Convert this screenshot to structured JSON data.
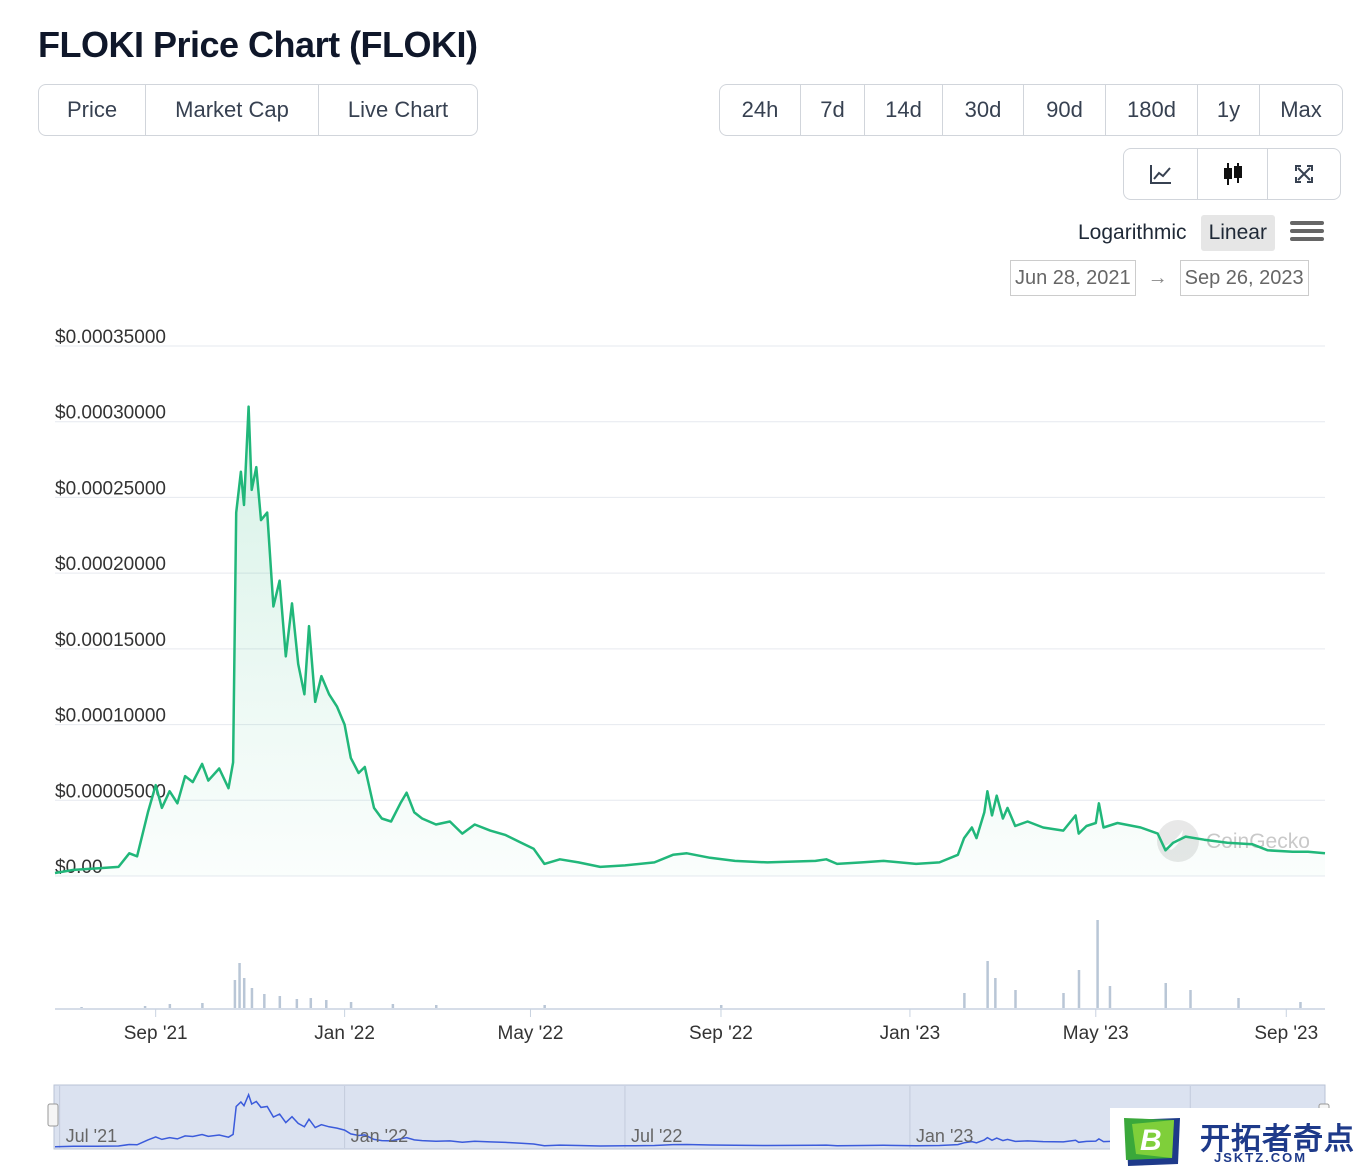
{
  "title": "FLOKI Price Chart (FLOKI)",
  "tabs": [
    {
      "label": "Price",
      "active": true
    },
    {
      "label": "Market Cap",
      "active": false
    },
    {
      "label": "Live Chart",
      "active": false
    }
  ],
  "ranges": [
    {
      "label": "24h",
      "active": false
    },
    {
      "label": "7d",
      "active": false
    },
    {
      "label": "14d",
      "active": false
    },
    {
      "label": "30d",
      "active": false
    },
    {
      "label": "90d",
      "active": false
    },
    {
      "label": "180d",
      "active": false
    },
    {
      "label": "1y",
      "active": false
    },
    {
      "label": "Max",
      "active": true
    }
  ],
  "chart_modes": [
    {
      "icon": "line-chart-icon",
      "active": true
    },
    {
      "icon": "candlestick-icon",
      "active": false
    },
    {
      "icon": "fullscreen-icon",
      "active": false
    }
  ],
  "scale": {
    "logarithmic": "Logarithmic",
    "linear": "Linear",
    "active": "Linear"
  },
  "date_range": {
    "from": "Jun 28, 2021",
    "to": "Sep 26, 2023",
    "arrow": "→"
  },
  "watermark": "CoinGecko",
  "navigator": {
    "labels": [
      "Jul '21",
      "Jan '22",
      "Jul '22",
      "Jan '23"
    ]
  },
  "logo": {
    "text_cn": "开拓者奇点",
    "text_en": "JSKTZ.COM",
    "mark": "B"
  },
  "colors": {
    "line": "#21b77a",
    "volume": "#b9c6d6",
    "navigator_fill": "#d8dfee",
    "navigator_line": "#3b5bdb"
  },
  "chart_data": {
    "type": "area",
    "title": "",
    "xlabel": "",
    "ylabel": "",
    "x_ticks": [
      "Sep '21",
      "Jan '22",
      "May '22",
      "Sep '22",
      "Jan '23",
      "May '23",
      "Sep '23"
    ],
    "x_tick_dates": [
      "2021-09-01",
      "2022-01-01",
      "2022-05-01",
      "2022-09-01",
      "2023-01-01",
      "2023-05-01",
      "2023-09-01"
    ],
    "y_ticks": [
      "$0.00",
      "$0.00005000",
      "$0.00010000",
      "$0.00015000",
      "$0.00020000",
      "$0.00025000",
      "$0.00030000",
      "$0.00035000"
    ],
    "y_tick_values": [
      0,
      5e-05,
      0.0001,
      0.00015,
      0.0002,
      0.00025,
      0.0003,
      0.00035
    ],
    "ylim": [
      0,
      0.00035
    ],
    "xlim": [
      "2021-06-28",
      "2023-09-26"
    ],
    "grid": true,
    "legend": "none",
    "series": [
      {
        "points": [
          [
            "2021-06-28",
            2e-06
          ],
          [
            "2021-07-10",
            4e-06
          ],
          [
            "2021-07-25",
            5e-06
          ],
          [
            "2021-08-08",
            6e-06
          ],
          [
            "2021-08-15",
            1.5e-05
          ],
          [
            "2021-08-20",
            1.3e-05
          ],
          [
            "2021-08-27",
            4.2e-05
          ],
          [
            "2021-09-01",
            6e-05
          ],
          [
            "2021-09-05",
            4.5e-05
          ],
          [
            "2021-09-10",
            5.6e-05
          ],
          [
            "2021-09-15",
            4.8e-05
          ],
          [
            "2021-09-20",
            6.6e-05
          ],
          [
            "2021-09-25",
            6.2e-05
          ],
          [
            "2021-10-01",
            7.4e-05
          ],
          [
            "2021-10-05",
            6.3e-05
          ],
          [
            "2021-10-12",
            7.1e-05
          ],
          [
            "2021-10-18",
            5.8e-05
          ],
          [
            "2021-10-21",
            7.5e-05
          ],
          [
            "2021-10-23",
            0.00024
          ],
          [
            "2021-10-26",
            0.000267
          ],
          [
            "2021-10-28",
            0.000245
          ],
          [
            "2021-10-31",
            0.00031
          ],
          [
            "2021-11-02",
            0.000255
          ],
          [
            "2021-11-05",
            0.00027
          ],
          [
            "2021-11-08",
            0.000235
          ],
          [
            "2021-11-12",
            0.00024
          ],
          [
            "2021-11-16",
            0.000178
          ],
          [
            "2021-11-20",
            0.000195
          ],
          [
            "2021-11-24",
            0.000145
          ],
          [
            "2021-11-28",
            0.00018
          ],
          [
            "2021-12-02",
            0.00014
          ],
          [
            "2021-12-06",
            0.00012
          ],
          [
            "2021-12-09",
            0.000165
          ],
          [
            "2021-12-13",
            0.000115
          ],
          [
            "2021-12-17",
            0.000132
          ],
          [
            "2021-12-22",
            0.00012
          ],
          [
            "2021-12-27",
            0.000112
          ],
          [
            "2022-01-01",
            0.0001
          ],
          [
            "2022-01-05",
            7.8e-05
          ],
          [
            "2022-01-10",
            6.8e-05
          ],
          [
            "2022-01-14",
            7.2e-05
          ],
          [
            "2022-01-20",
            4.5e-05
          ],
          [
            "2022-01-25",
            3.8e-05
          ],
          [
            "2022-01-31",
            3.6e-05
          ],
          [
            "2022-02-06",
            4.8e-05
          ],
          [
            "2022-02-10",
            5.5e-05
          ],
          [
            "2022-02-15",
            4.2e-05
          ],
          [
            "2022-02-20",
            3.8e-05
          ],
          [
            "2022-03-01",
            3.4e-05
          ],
          [
            "2022-03-10",
            3.6e-05
          ],
          [
            "2022-03-18",
            2.8e-05
          ],
          [
            "2022-03-26",
            3.4e-05
          ],
          [
            "2022-04-05",
            3e-05
          ],
          [
            "2022-04-15",
            2.7e-05
          ],
          [
            "2022-04-25",
            2.2e-05
          ],
          [
            "2022-05-03",
            1.8e-05
          ],
          [
            "2022-05-10",
            8e-06
          ],
          [
            "2022-05-20",
            1.1e-05
          ],
          [
            "2022-06-01",
            9e-06
          ],
          [
            "2022-06-15",
            6e-06
          ],
          [
            "2022-07-01",
            7e-06
          ],
          [
            "2022-07-20",
            9e-06
          ],
          [
            "2022-08-01",
            1.4e-05
          ],
          [
            "2022-08-10",
            1.5e-05
          ],
          [
            "2022-08-25",
            1.2e-05
          ],
          [
            "2022-09-10",
            1e-05
          ],
          [
            "2022-10-01",
            9e-06
          ],
          [
            "2022-11-01",
            1e-05
          ],
          [
            "2022-11-08",
            1.1e-05
          ],
          [
            "2022-11-15",
            8e-06
          ],
          [
            "2022-12-01",
            9e-06
          ],
          [
            "2022-12-15",
            1e-05
          ],
          [
            "2023-01-05",
            8e-06
          ],
          [
            "2023-01-20",
            9e-06
          ],
          [
            "2023-02-01",
            1.4e-05
          ],
          [
            "2023-02-05",
            2.5e-05
          ],
          [
            "2023-02-10",
            3.2e-05
          ],
          [
            "2023-02-13",
            2.5e-05
          ],
          [
            "2023-02-18",
            4.2e-05
          ],
          [
            "2023-02-20",
            5.6e-05
          ],
          [
            "2023-02-23",
            4e-05
          ],
          [
            "2023-02-26",
            5.3e-05
          ],
          [
            "2023-03-02",
            3.8e-05
          ],
          [
            "2023-03-05",
            4.5e-05
          ],
          [
            "2023-03-10",
            3.3e-05
          ],
          [
            "2023-03-18",
            3.6e-05
          ],
          [
            "2023-03-28",
            3.2e-05
          ],
          [
            "2023-04-10",
            3e-05
          ],
          [
            "2023-04-18",
            4e-05
          ],
          [
            "2023-04-20",
            2.8e-05
          ],
          [
            "2023-04-25",
            3.3e-05
          ],
          [
            "2023-05-01",
            3.5e-05
          ],
          [
            "2023-05-03",
            4.8e-05
          ],
          [
            "2023-05-06",
            3.2e-05
          ],
          [
            "2023-05-15",
            3.5e-05
          ],
          [
            "2023-05-30",
            3.2e-05
          ],
          [
            "2023-06-10",
            2.8e-05
          ],
          [
            "2023-06-15",
            1.7e-05
          ],
          [
            "2023-06-20",
            2.2e-05
          ],
          [
            "2023-06-28",
            2.6e-05
          ],
          [
            "2023-07-10",
            2.4e-05
          ],
          [
            "2023-07-25",
            2.2e-05
          ],
          [
            "2023-08-10",
            2.1e-05
          ],
          [
            "2023-08-20",
            1.7e-05
          ],
          [
            "2023-09-05",
            1.6e-05
          ],
          [
            "2023-09-15",
            1.6e-05
          ],
          [
            "2023-09-26",
            1.5e-05
          ]
        ]
      }
    ],
    "volume_series": [
      [
        "2021-07-15",
        1
      ],
      [
        "2021-08-25",
        2
      ],
      [
        "2021-09-10",
        4
      ],
      [
        "2021-10-01",
        5
      ],
      [
        "2021-10-22",
        28
      ],
      [
        "2021-10-25",
        45
      ],
      [
        "2021-10-28",
        30
      ],
      [
        "2021-11-02",
        20
      ],
      [
        "2021-11-10",
        14
      ],
      [
        "2021-11-20",
        12
      ],
      [
        "2021-12-01",
        9
      ],
      [
        "2021-12-10",
        10
      ],
      [
        "2021-12-20",
        8
      ],
      [
        "2022-01-05",
        6
      ],
      [
        "2022-02-01",
        4
      ],
      [
        "2022-03-01",
        3
      ],
      [
        "2022-05-10",
        3
      ],
      [
        "2022-09-01",
        3
      ],
      [
        "2023-02-05",
        15
      ],
      [
        "2023-02-20",
        47
      ],
      [
        "2023-02-25",
        30
      ],
      [
        "2023-03-10",
        18
      ],
      [
        "2023-04-10",
        15
      ],
      [
        "2023-04-20",
        38
      ],
      [
        "2023-05-02",
        88
      ],
      [
        "2023-05-10",
        22
      ],
      [
        "2023-06-15",
        25
      ],
      [
        "2023-07-01",
        18
      ],
      [
        "2023-08-01",
        10
      ],
      [
        "2023-09-10",
        6
      ]
    ]
  }
}
